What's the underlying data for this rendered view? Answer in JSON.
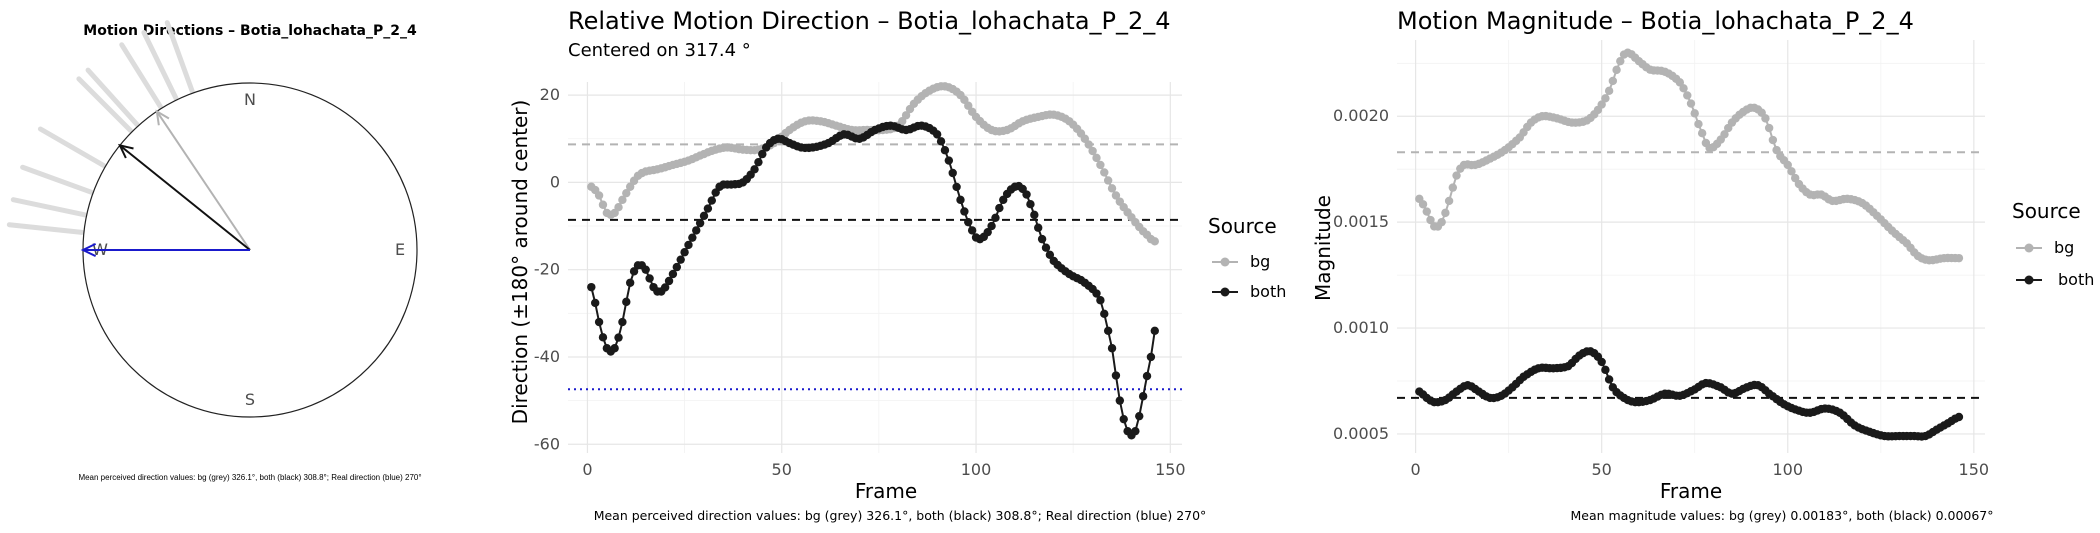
{
  "colors": {
    "bg": "#b3b3b3",
    "both": "#1a1a1a",
    "real": "#1a1acc",
    "wheel_trail": "#dcdcdc"
  },
  "chart_data": [
    {
      "type": "compass",
      "title": "Motion Directions – Botia_lohachata_P_2_4",
      "cardinals": {
        "n": "N",
        "e": "E",
        "s": "S",
        "w": "W"
      },
      "arrows": [
        {
          "name": "bg",
          "direction_deg": 326.1,
          "length": 1.0
        },
        {
          "name": "both",
          "direction_deg": 308.8,
          "length": 1.0
        },
        {
          "name": "real",
          "direction_deg": 270,
          "length": 1.0
        }
      ],
      "trail_directions_deg": [
        328,
        315,
        300,
        290,
        282,
        276,
        318,
        334,
        340
      ],
      "caption": "Mean perceived direction values: bg (grey) 326.1°, both (black) 308.8°; Real direction (blue) 270°"
    },
    {
      "type": "line",
      "title": "Relative Motion Direction – Botia_lohachata_P_2_4",
      "subtitle": "Centered on  317.4 °",
      "xlabel": "Frame",
      "ylabel": "Direction (±180° around center)",
      "xlim": [
        -5,
        153
      ],
      "ylim": [
        -62,
        23
      ],
      "xticks": [
        0,
        50,
        100,
        150
      ],
      "yticks": [
        20,
        0,
        -20,
        -40,
        -60
      ],
      "reference_lines": [
        {
          "series": "bg",
          "y": 8.7,
          "style": "dashed"
        },
        {
          "series": "both",
          "y": -8.6,
          "style": "dashed"
        },
        {
          "series": "real",
          "y": -47.4,
          "style": "dotted"
        }
      ],
      "legend": {
        "title": "Source",
        "position": "right",
        "entries": [
          "bg",
          "both"
        ]
      },
      "series": [
        {
          "name": "bg",
          "keys": [
            [
              1,
              -1
            ],
            [
              3,
              -3
            ],
            [
              5,
              -7
            ],
            [
              7,
              -7
            ],
            [
              9,
              -4
            ],
            [
              11,
              -1
            ],
            [
              13,
              1.5
            ],
            [
              15,
              2.5
            ],
            [
              18,
              3
            ],
            [
              22,
              4
            ],
            [
              26,
              5
            ],
            [
              30,
              6.5
            ],
            [
              33,
              7.5
            ],
            [
              36,
              8
            ],
            [
              40,
              7.5
            ],
            [
              44,
              7.5
            ],
            [
              48,
              9
            ],
            [
              52,
              12
            ],
            [
              56,
              14
            ],
            [
              60,
              14
            ],
            [
              64,
              13
            ],
            [
              68,
              12
            ],
            [
              72,
              12
            ],
            [
              76,
              12
            ],
            [
              80,
              13
            ],
            [
              84,
              18
            ],
            [
              88,
              21
            ],
            [
              92,
              22
            ],
            [
              96,
              20
            ],
            [
              100,
              15
            ],
            [
              104,
              12
            ],
            [
              108,
              12
            ],
            [
              112,
              14
            ],
            [
              116,
              15
            ],
            [
              120,
              15.5
            ],
            [
              124,
              14
            ],
            [
              128,
              10
            ],
            [
              132,
              4
            ],
            [
              136,
              -3
            ],
            [
              140,
              -8
            ],
            [
              144,
              -12
            ],
            [
              146,
              -13.5
            ]
          ]
        },
        {
          "name": "both",
          "keys": [
            [
              1,
              -24
            ],
            [
              3,
              -32
            ],
            [
              5,
              -38
            ],
            [
              7,
              -38
            ],
            [
              9,
              -32
            ],
            [
              11,
              -23
            ],
            [
              13,
              -19
            ],
            [
              15,
              -20
            ],
            [
              17,
              -24
            ],
            [
              19,
              -25
            ],
            [
              22,
              -21
            ],
            [
              25,
              -16
            ],
            [
              28,
              -11
            ],
            [
              31,
              -6
            ],
            [
              34,
              -1
            ],
            [
              37,
              -0.5
            ],
            [
              40,
              0
            ],
            [
              43,
              3
            ],
            [
              46,
              8
            ],
            [
              49,
              10
            ],
            [
              52,
              9
            ],
            [
              55,
              8
            ],
            [
              58,
              8
            ],
            [
              62,
              9
            ],
            [
              66,
              11
            ],
            [
              70,
              10
            ],
            [
              74,
              12
            ],
            [
              78,
              13
            ],
            [
              82,
              12
            ],
            [
              86,
              13
            ],
            [
              90,
              11
            ],
            [
              93,
              5
            ],
            [
              96,
              -4
            ],
            [
              99,
              -11
            ],
            [
              101,
              -13
            ],
            [
              104,
              -10
            ],
            [
              107,
              -4
            ],
            [
              110,
              -1
            ],
            [
              112,
              -1.5
            ],
            [
              114,
              -5
            ],
            [
              117,
              -13
            ],
            [
              120,
              -18
            ],
            [
              124,
              -21
            ],
            [
              128,
              -23
            ],
            [
              132,
              -27
            ],
            [
              135,
              -38
            ],
            [
              137,
              -50
            ],
            [
              139,
              -57
            ],
            [
              141,
              -57
            ],
            [
              143,
              -49
            ],
            [
              145,
              -40
            ],
            [
              146,
              -34
            ]
          ]
        }
      ],
      "caption": "Mean perceived direction values: bg (grey) 326.1°, both (black) 308.8°; Real direction (blue) 270°"
    },
    {
      "type": "line",
      "title": "Motion Magnitude – Botia_lohachata_P_2_4",
      "xlabel": "Frame",
      "ylabel": "Magnitude",
      "xlim": [
        -5,
        153
      ],
      "ylim": [
        0.00041,
        0.00236
      ],
      "xticks": [
        0,
        50,
        100,
        150
      ],
      "yticks": [
        "0.0020",
        "0.0015",
        "0.0010",
        "0.0005"
      ],
      "ytick_values": [
        0.002,
        0.0015,
        0.001,
        0.0005
      ],
      "reference_lines": [
        {
          "series": "bg",
          "y": 0.00183,
          "style": "dashed"
        },
        {
          "series": "both",
          "y": 0.00067,
          "style": "dashed"
        }
      ],
      "legend": {
        "title": "Source",
        "position": "right",
        "entries": [
          "bg",
          "both"
        ]
      },
      "series": [
        {
          "name": "bg",
          "keys": [
            [
              1,
              0.00161
            ],
            [
              3,
              0.00155
            ],
            [
              5,
              0.00148
            ],
            [
              7,
              0.0015
            ],
            [
              9,
              0.0016
            ],
            [
              11,
              0.00172
            ],
            [
              13,
              0.00177
            ],
            [
              16,
              0.00177
            ],
            [
              20,
              0.0018
            ],
            [
              24,
              0.00184
            ],
            [
              28,
              0.0019
            ],
            [
              31,
              0.00197
            ],
            [
              34,
              0.002
            ],
            [
              38,
              0.00199
            ],
            [
              42,
              0.00197
            ],
            [
              46,
              0.00198
            ],
            [
              49,
              0.00203
            ],
            [
              52,
              0.00212
            ],
            [
              55,
              0.00226
            ],
            [
              57,
              0.0023
            ],
            [
              60,
              0.00226
            ],
            [
              63,
              0.00222
            ],
            [
              67,
              0.00221
            ],
            [
              71,
              0.00216
            ],
            [
              74,
              0.00206
            ],
            [
              77,
              0.00192
            ],
            [
              79,
              0.00185
            ],
            [
              82,
              0.00189
            ],
            [
              85,
              0.00197
            ],
            [
              88,
              0.00202
            ],
            [
              91,
              0.00204
            ],
            [
              94,
              0.00199
            ],
            [
              97,
              0.00184
            ],
            [
              100,
              0.00177
            ],
            [
              103,
              0.00168
            ],
            [
              106,
              0.00163
            ],
            [
              109,
              0.00163
            ],
            [
              112,
              0.0016
            ],
            [
              116,
              0.00161
            ],
            [
              120,
              0.00159
            ],
            [
              124,
              0.00153
            ],
            [
              128,
              0.00146
            ],
            [
              132,
              0.0014
            ],
            [
              135,
              0.00134
            ],
            [
              138,
              0.00132
            ],
            [
              142,
              0.00133
            ],
            [
              146,
              0.00133
            ]
          ]
        },
        {
          "name": "both",
          "keys": [
            [
              1,
              0.0007
            ],
            [
              3,
              0.00067
            ],
            [
              5,
              0.00065
            ],
            [
              8,
              0.00066
            ],
            [
              11,
              0.0007
            ],
            [
              14,
              0.00073
            ],
            [
              17,
              0.0007
            ],
            [
              20,
              0.00067
            ],
            [
              23,
              0.00068
            ],
            [
              26,
              0.00072
            ],
            [
              29,
              0.00077
            ],
            [
              33,
              0.00081
            ],
            [
              37,
              0.00081
            ],
            [
              41,
              0.00082
            ],
            [
              44,
              0.00087
            ],
            [
              47,
              0.00089
            ],
            [
              50,
              0.00084
            ],
            [
              53,
              0.00072
            ],
            [
              56,
              0.00067
            ],
            [
              59,
              0.00065
            ],
            [
              63,
              0.00066
            ],
            [
              67,
              0.00069
            ],
            [
              71,
              0.00068
            ],
            [
              75,
              0.00071
            ],
            [
              78,
              0.00074
            ],
            [
              82,
              0.00072
            ],
            [
              85,
              0.00069
            ],
            [
              89,
              0.00072
            ],
            [
              92,
              0.00073
            ],
            [
              95,
              0.00069
            ],
            [
              99,
              0.00064
            ],
            [
              103,
              0.00061
            ],
            [
              106,
              0.0006
            ],
            [
              110,
              0.00062
            ],
            [
              114,
              0.0006
            ],
            [
              118,
              0.00054
            ],
            [
              122,
              0.00051
            ],
            [
              126,
              0.00049
            ],
            [
              130,
              0.00049
            ],
            [
              134,
              0.00049
            ],
            [
              137,
              0.00049
            ],
            [
              140,
              0.00052
            ],
            [
              143,
              0.00055
            ],
            [
              146,
              0.00058
            ]
          ]
        }
      ],
      "caption": "Mean magnitude values: bg (grey) 0.00183°, both (black) 0.00067°"
    }
  ]
}
